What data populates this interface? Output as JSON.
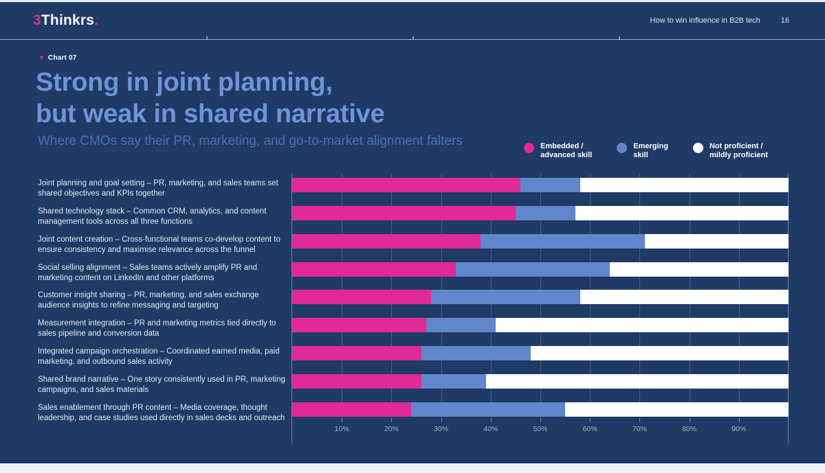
{
  "header": {
    "logo_prefix": "3",
    "logo_name": "Thinkrs",
    "logo_suffix": ".",
    "doc_title": "How to win influence in B2B tech",
    "page_number": "16"
  },
  "chart_tag": {
    "marker": "▼",
    "label": "Chart 07"
  },
  "title": {
    "line1": "Strong in joint planning,",
    "line2": "but weak in shared narrative"
  },
  "subtitle": "Where CMOs say their PR, marketing, and go-to-market alignment falters",
  "legend": {
    "items": [
      {
        "line1": "Embedded /",
        "line2": "advanced skill"
      },
      {
        "line1": "Emerging",
        "line2": "skill"
      },
      {
        "line1": "Not proficient /",
        "line2": "mildly proficient"
      }
    ]
  },
  "colors": {
    "embedded": "#e02a95",
    "emerging": "#6286cc",
    "not_proficient": "#ffffff",
    "slide_background": "#1f3a64",
    "title_blue": "#6e94d8"
  },
  "chart_data": {
    "type": "bar",
    "orientation": "horizontal",
    "stacked": true,
    "unit": "%",
    "title": "Strong in joint planning, but weak in shared narrative",
    "subtitle": "Where CMOs say their PR, marketing, and go-to-market alignment falters",
    "legend_position": "top-right",
    "categories": [
      "Joint planning and goal setting – PR, marketing, and sales teams set shared objectives and KPIs together",
      "Shared technology stack – Common CRM, analytics, and content management tools across all three functions",
      "Joint content creation – Cross-functional teams co-develop content to ensure consistency and maximise relevance across the funnel",
      "Social selling alignment – Sales teams actively amplify PR and marketing content on LinkedIn and other platforms",
      "Customer insight sharing – PR, marketing, and sales exchange audience insights to refine messaging and targeting",
      "Measurement integration – PR and marketing metrics tied directly to sales pipeline and conversion data",
      "Integrated campaign orchestration – Coordinated earned media, paid marketing, and outbound sales activity",
      "Shared brand narrative – One story consistently used in PR, marketing campaigns, and sales materials",
      "Sales enablement through PR content – Media coverage, thought leadership, and case studies used directly in sales decks and outreach"
    ],
    "series": [
      {
        "name": "Embedded / advanced skill",
        "color_key": "embedded",
        "values": [
          46,
          45,
          38,
          33,
          28,
          27,
          26,
          26,
          24
        ]
      },
      {
        "name": "Emerging skill",
        "color_key": "emerging",
        "values": [
          12,
          12,
          33,
          31,
          30,
          14,
          22,
          13,
          31
        ]
      },
      {
        "name": "Not proficient / mildly proficient",
        "color_key": "not_proficient",
        "values": [
          42,
          43,
          29,
          36,
          42,
          59,
          52,
          61,
          45
        ]
      }
    ],
    "x_axis": {
      "range": [
        0,
        100
      ],
      "ticks": [
        "10%",
        "20%",
        "30%",
        "40%",
        "50%",
        "60%",
        "70%",
        "80%",
        "90%"
      ],
      "grid": true
    }
  }
}
